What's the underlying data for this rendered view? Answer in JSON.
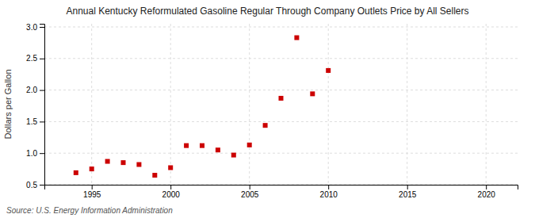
{
  "chart_data": {
    "type": "scatter",
    "title": "Annual Kentucky Reformulated Gasoline Regular Through Company Outlets Price by All Sellers",
    "ylabel": "Dollars per Gallon",
    "source": "Source: U.S. Energy Information Administration",
    "color": "#cc0000",
    "marker": "square",
    "grid": true,
    "xlim": [
      1992,
      2022
    ],
    "ylim": [
      0.5,
      3.05
    ],
    "xticks": [
      1995,
      2000,
      2005,
      2010,
      2015,
      2020
    ],
    "yticks": [
      0.5,
      {
        "value": 1.0,
        "label": "1.0"
      },
      1.5,
      {
        "value": 2.0,
        "label": "2.0"
      },
      2.5,
      {
        "value": 3.0,
        "label": "3.0"
      }
    ],
    "x": [
      1994,
      1995,
      1996,
      1997,
      1998,
      1999,
      2000,
      2001,
      2002,
      2003,
      2004,
      2005,
      2006,
      2007,
      2008,
      2009,
      2010
    ],
    "values": [
      0.69,
      0.75,
      0.87,
      0.85,
      0.82,
      0.65,
      0.77,
      1.12,
      1.12,
      1.05,
      0.97,
      1.13,
      1.44,
      1.87,
      2.83,
      1.94,
      2.31
    ]
  }
}
